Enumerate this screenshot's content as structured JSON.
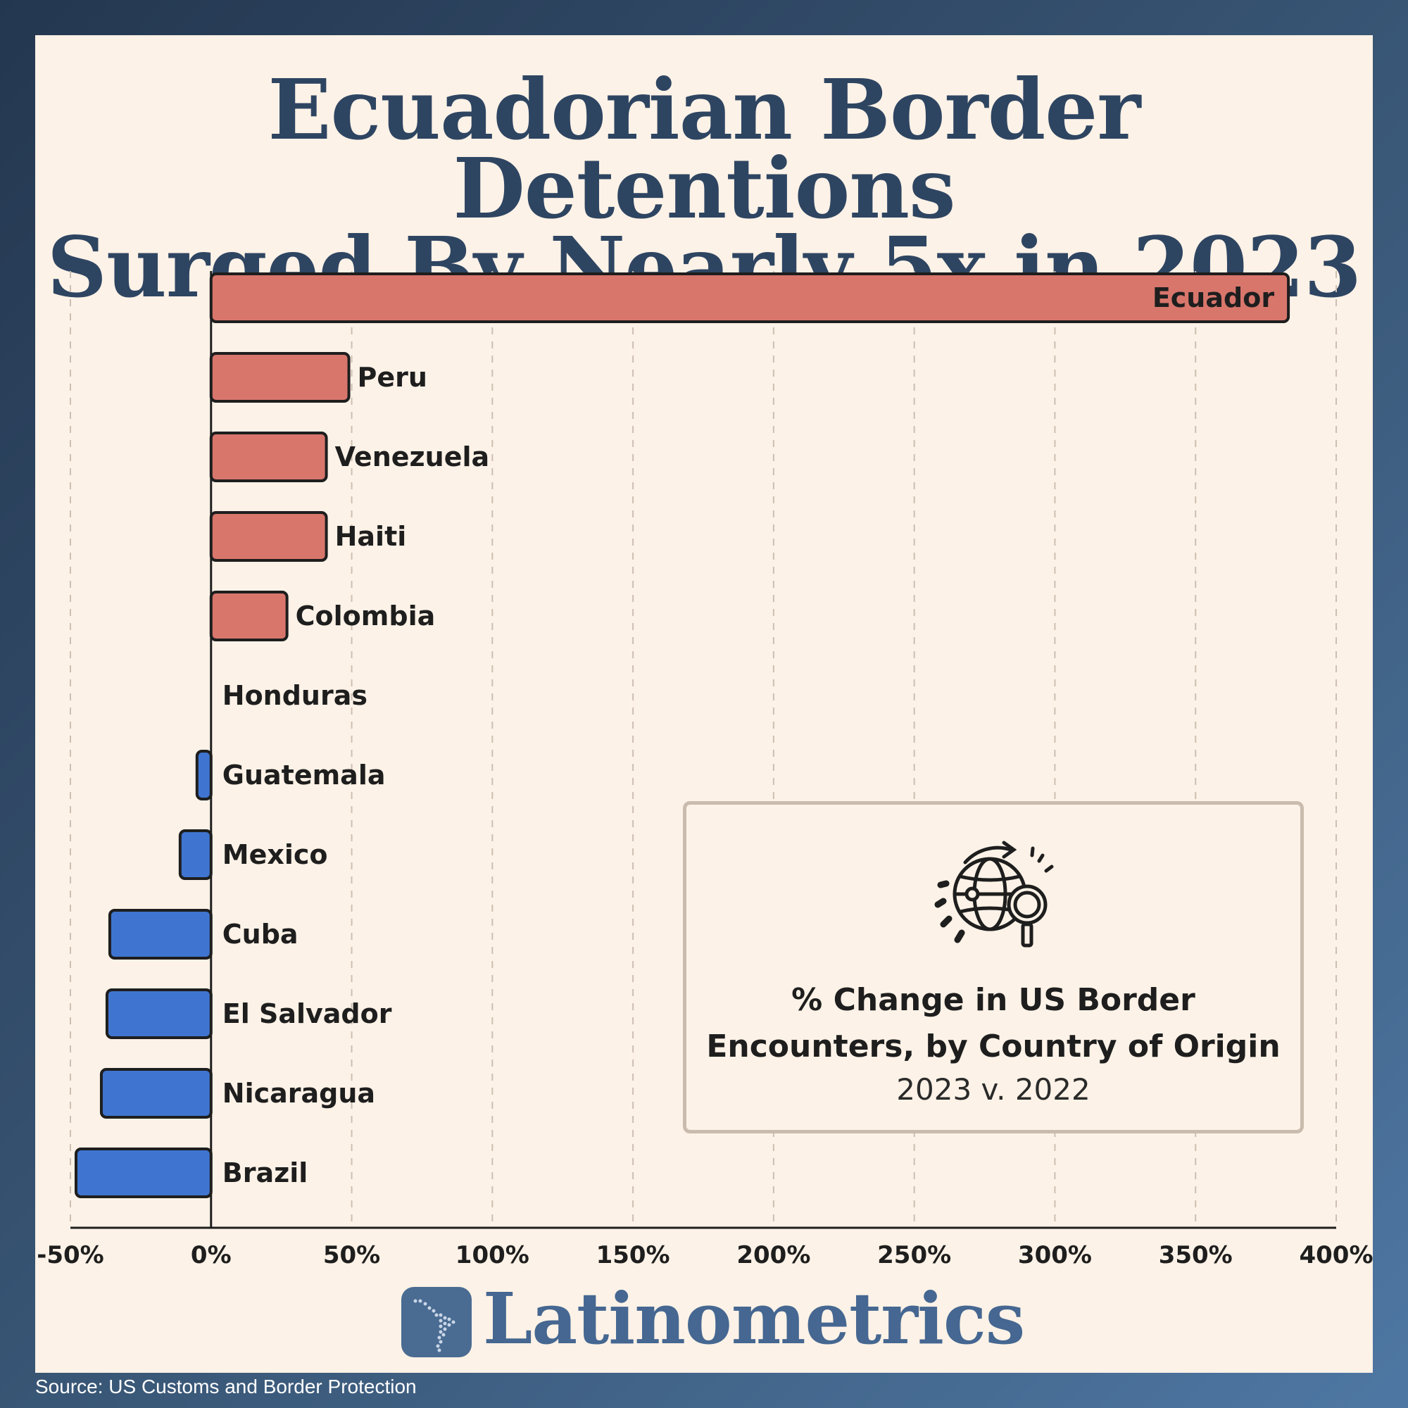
{
  "title": {
    "line1": "Ecuadorian Border Detentions",
    "line2": "Surged By Nearly 5x in 2023"
  },
  "info_box": {
    "icon": "globe-search-icon",
    "title_line1": "% Change in US Border",
    "title_line2": "Encounters, by Country of Origin",
    "subtitle": "2023 v. 2022"
  },
  "brand": {
    "name": "Latinometrics",
    "icon": "latin-america-map-icon"
  },
  "source": "Source: US Customs and Border Protection",
  "colors": {
    "increase": "#d8766c",
    "decrease": "#3f75d0",
    "title": "#2e4562",
    "brand": "#456791",
    "panel": "#fdf2e7"
  },
  "chart_data": {
    "type": "bar",
    "orientation": "horizontal",
    "categories": [
      "Ecuador",
      "Peru",
      "Venezuela",
      "Haiti",
      "Colombia",
      "Honduras",
      "Guatemala",
      "Mexico",
      "Cuba",
      "El Salvador",
      "Nicaragua",
      "Brazil"
    ],
    "values": [
      383,
      49,
      41,
      41,
      27,
      0,
      -5,
      -11,
      -36,
      -37,
      -39,
      -48
    ],
    "unit": "%",
    "xlim": [
      -50,
      400
    ],
    "xticks": [
      "-50%",
      "0%",
      "50%",
      "100%",
      "150%",
      "200%",
      "250%",
      "300%",
      "350%",
      "400%"
    ],
    "grid": "vertical dashed",
    "title": "% Change in US Border Encounters, by Country of Origin"
  }
}
